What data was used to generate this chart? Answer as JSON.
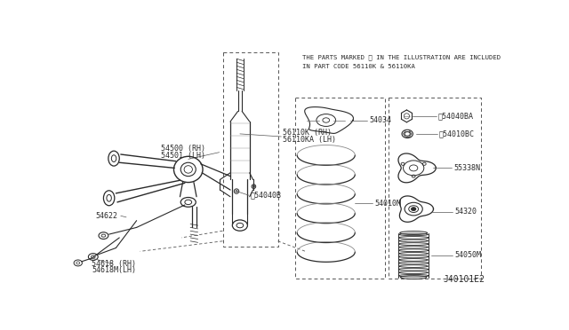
{
  "bg_color": "#ffffff",
  "line_color": "#2a2a2a",
  "text_color": "#2a2a2a",
  "note_text_line1": "THE PARTS MARKED ※ IN THE ILLUSTRATION ARE INCLUDED",
  "note_text_line2": "IN PART CODE 56110K & 56110KA",
  "diagram_id": "J40101E2",
  "font_size_label": 6.0,
  "font_size_note": 5.2,
  "font_size_id": 7.0
}
